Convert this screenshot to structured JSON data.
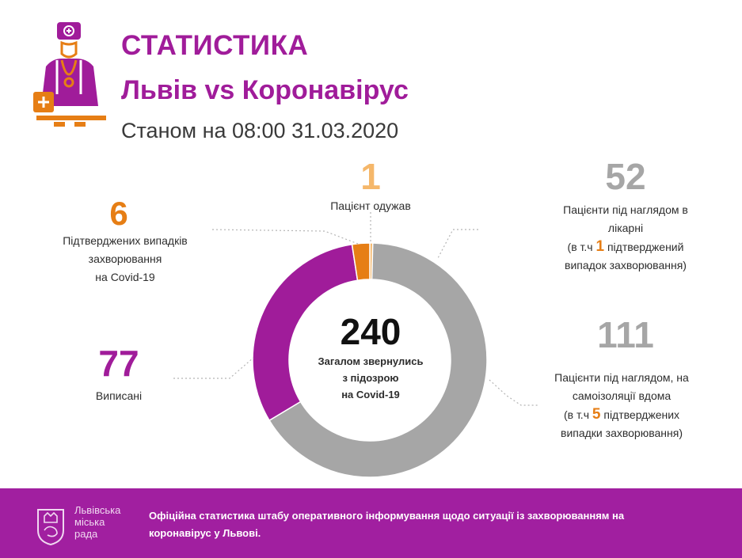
{
  "header": {
    "title": "СТАТИСТИКА",
    "subtitle": "Львів vs Коронавірус",
    "date": "Станом на 08:00 31.03.2020"
  },
  "center": {
    "total": "240",
    "label_l1": "Загалом звернулись",
    "label_l2": "з підозрою",
    "label_l3": "на Covid-19"
  },
  "stats": {
    "confirmed": {
      "value": "6",
      "l1": "Підтверджених випадків",
      "l2": "захворювання",
      "l3": "на Covid-19"
    },
    "recovered": {
      "value": "1",
      "l1": "Пацієнт одужав"
    },
    "hospital": {
      "value": "52",
      "l1": "Пацієнти під наглядом в",
      "l2": "лікарні",
      "l3_pre": "(в т.ч",
      "l3_num": "1",
      "l3_post": "підтверджений",
      "l4": "випадок захворювання)"
    },
    "home": {
      "value": "111",
      "l1": "Пацієнти під наглядом, на",
      "l2": "самоізоляції вдома",
      "l3_pre": "(в т.ч",
      "l3_num": "5",
      "l3_post": "підтверджених",
      "l4": "випадки захворювання)"
    },
    "discharged": {
      "value": "77",
      "l1": "Виписані"
    }
  },
  "footer": {
    "logo_l1": "Львівська",
    "logo_l2": "міська",
    "logo_l3": "рада",
    "text_l1": "Офіційна статистика штабу оперативного інформування щодо ситуації із захворюванням на",
    "text_l2": "коронавірус у Львові."
  },
  "colors": {
    "purple": "#a01c9a",
    "orange": "#e67e15",
    "light_orange": "#f5b76a",
    "gray": "#a6a6a6"
  },
  "chart_data": {
    "type": "pie",
    "donut": true,
    "slices": [
      {
        "value": 1,
        "color": "#f5b76a"
      },
      {
        "value": 163,
        "color": "#a6a6a6"
      },
      {
        "value": 77,
        "color": "#a01c9a"
      },
      {
        "value": 6,
        "color": "#e67e15"
      }
    ]
  }
}
